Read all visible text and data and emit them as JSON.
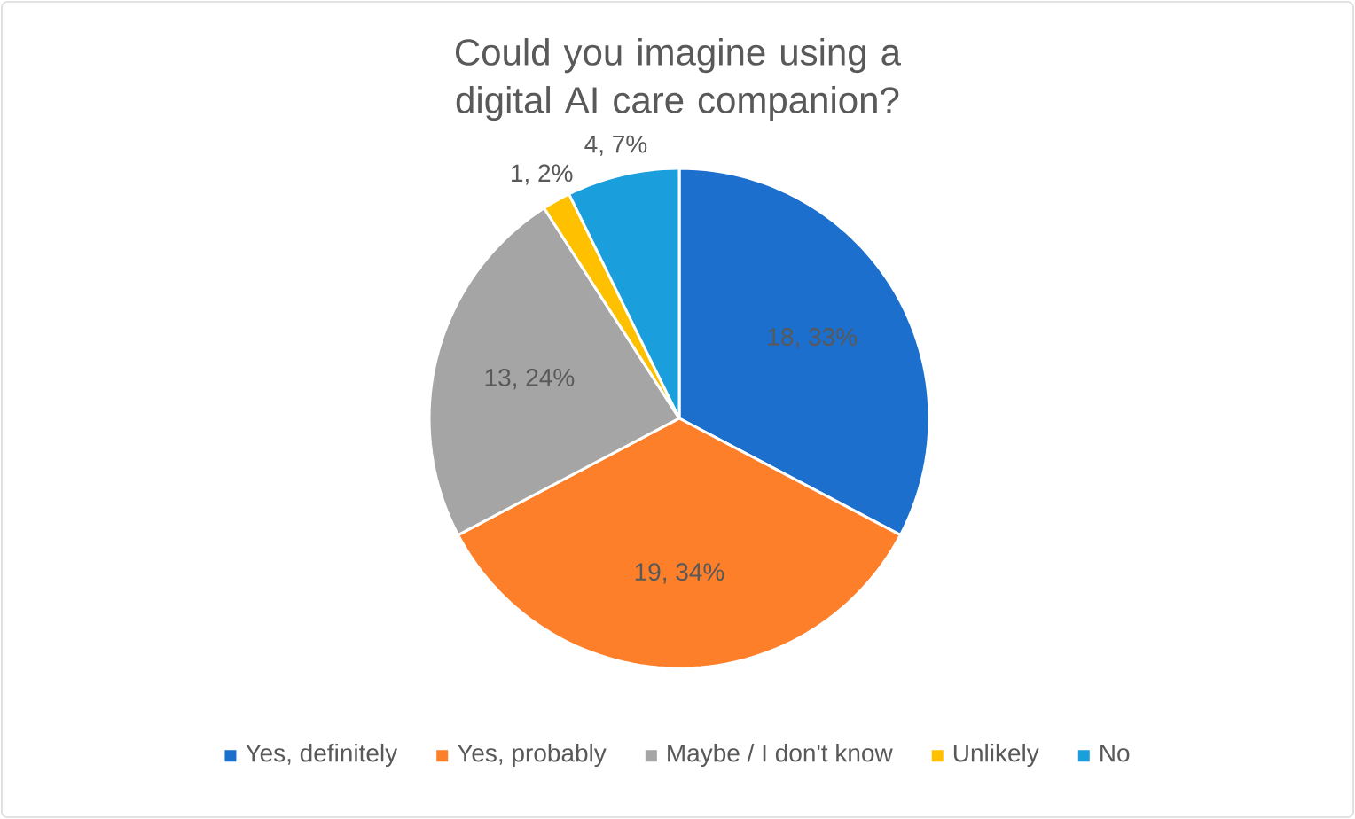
{
  "chart_data": {
    "type": "pie",
    "title": "Could you imagine using a digital AI care companion?",
    "categories": [
      "Yes, definitely",
      "Yes, probably",
      "Maybe / I don't know",
      "Unlikely",
      "No"
    ],
    "values": [
      18,
      19,
      13,
      1,
      4
    ],
    "colors": [
      "#1c6fcc",
      "#fd7f2a",
      "#a5a5a5",
      "#ffc000",
      "#1a9fdc"
    ],
    "value_labels": [
      "18, 33%",
      "19, 34%",
      "13, 24%",
      "1, 2%",
      "4, 7%"
    ],
    "legend": "bottom"
  }
}
